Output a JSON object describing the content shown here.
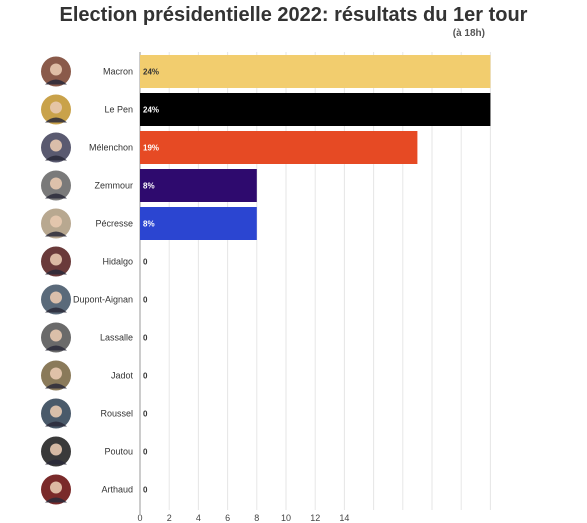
{
  "chart_data": {
    "type": "bar",
    "orientation": "horizontal",
    "title": "Election présidentielle 2022: résultats du 1er tour",
    "subtitle": "(à 18h)",
    "categories": [
      "Macron",
      "Le Pen",
      "Mélenchon",
      "Zemmour",
      "Pécresse",
      "Hidalgo",
      "Dupont-Aignan",
      "Lassalle",
      "Jadot",
      "Roussel",
      "Poutou",
      "Arthaud"
    ],
    "values": [
      24,
      24,
      19,
      8,
      8,
      0,
      0,
      0,
      0,
      0,
      0,
      0
    ],
    "value_labels": [
      "24%",
      "24%",
      "19%",
      "8%",
      "8%",
      "0",
      "0",
      "0",
      "0",
      "0",
      "0",
      "0"
    ],
    "colors": [
      "#f2cd6e",
      "#000000",
      "#e64a24",
      "#2e0a6e",
      "#2b45d1",
      "#cccccc",
      "#cccccc",
      "#cccccc",
      "#cccccc",
      "#cccccc",
      "#cccccc",
      "#cccccc"
    ],
    "label_colors": [
      "#333333",
      "#ffffff",
      "#ffffff",
      "#ffffff",
      "#ffffff",
      "#333333",
      "#333333",
      "#333333",
      "#333333",
      "#333333",
      "#333333",
      "#333333"
    ],
    "x_ticks": [
      0,
      2,
      4,
      6,
      8,
      10,
      12,
      14
    ],
    "xlim": [
      0,
      24.5
    ],
    "grid": true,
    "avatar_colors": [
      "#8a5a4a",
      "#c9a24a",
      "#5a5a70",
      "#7a7a7a",
      "#b8a890",
      "#6a3a3a",
      "#5a6a7a",
      "#6a6a6a",
      "#8a7a5a",
      "#4a5a6a",
      "#3a3a3a",
      "#7a2a2a"
    ]
  }
}
